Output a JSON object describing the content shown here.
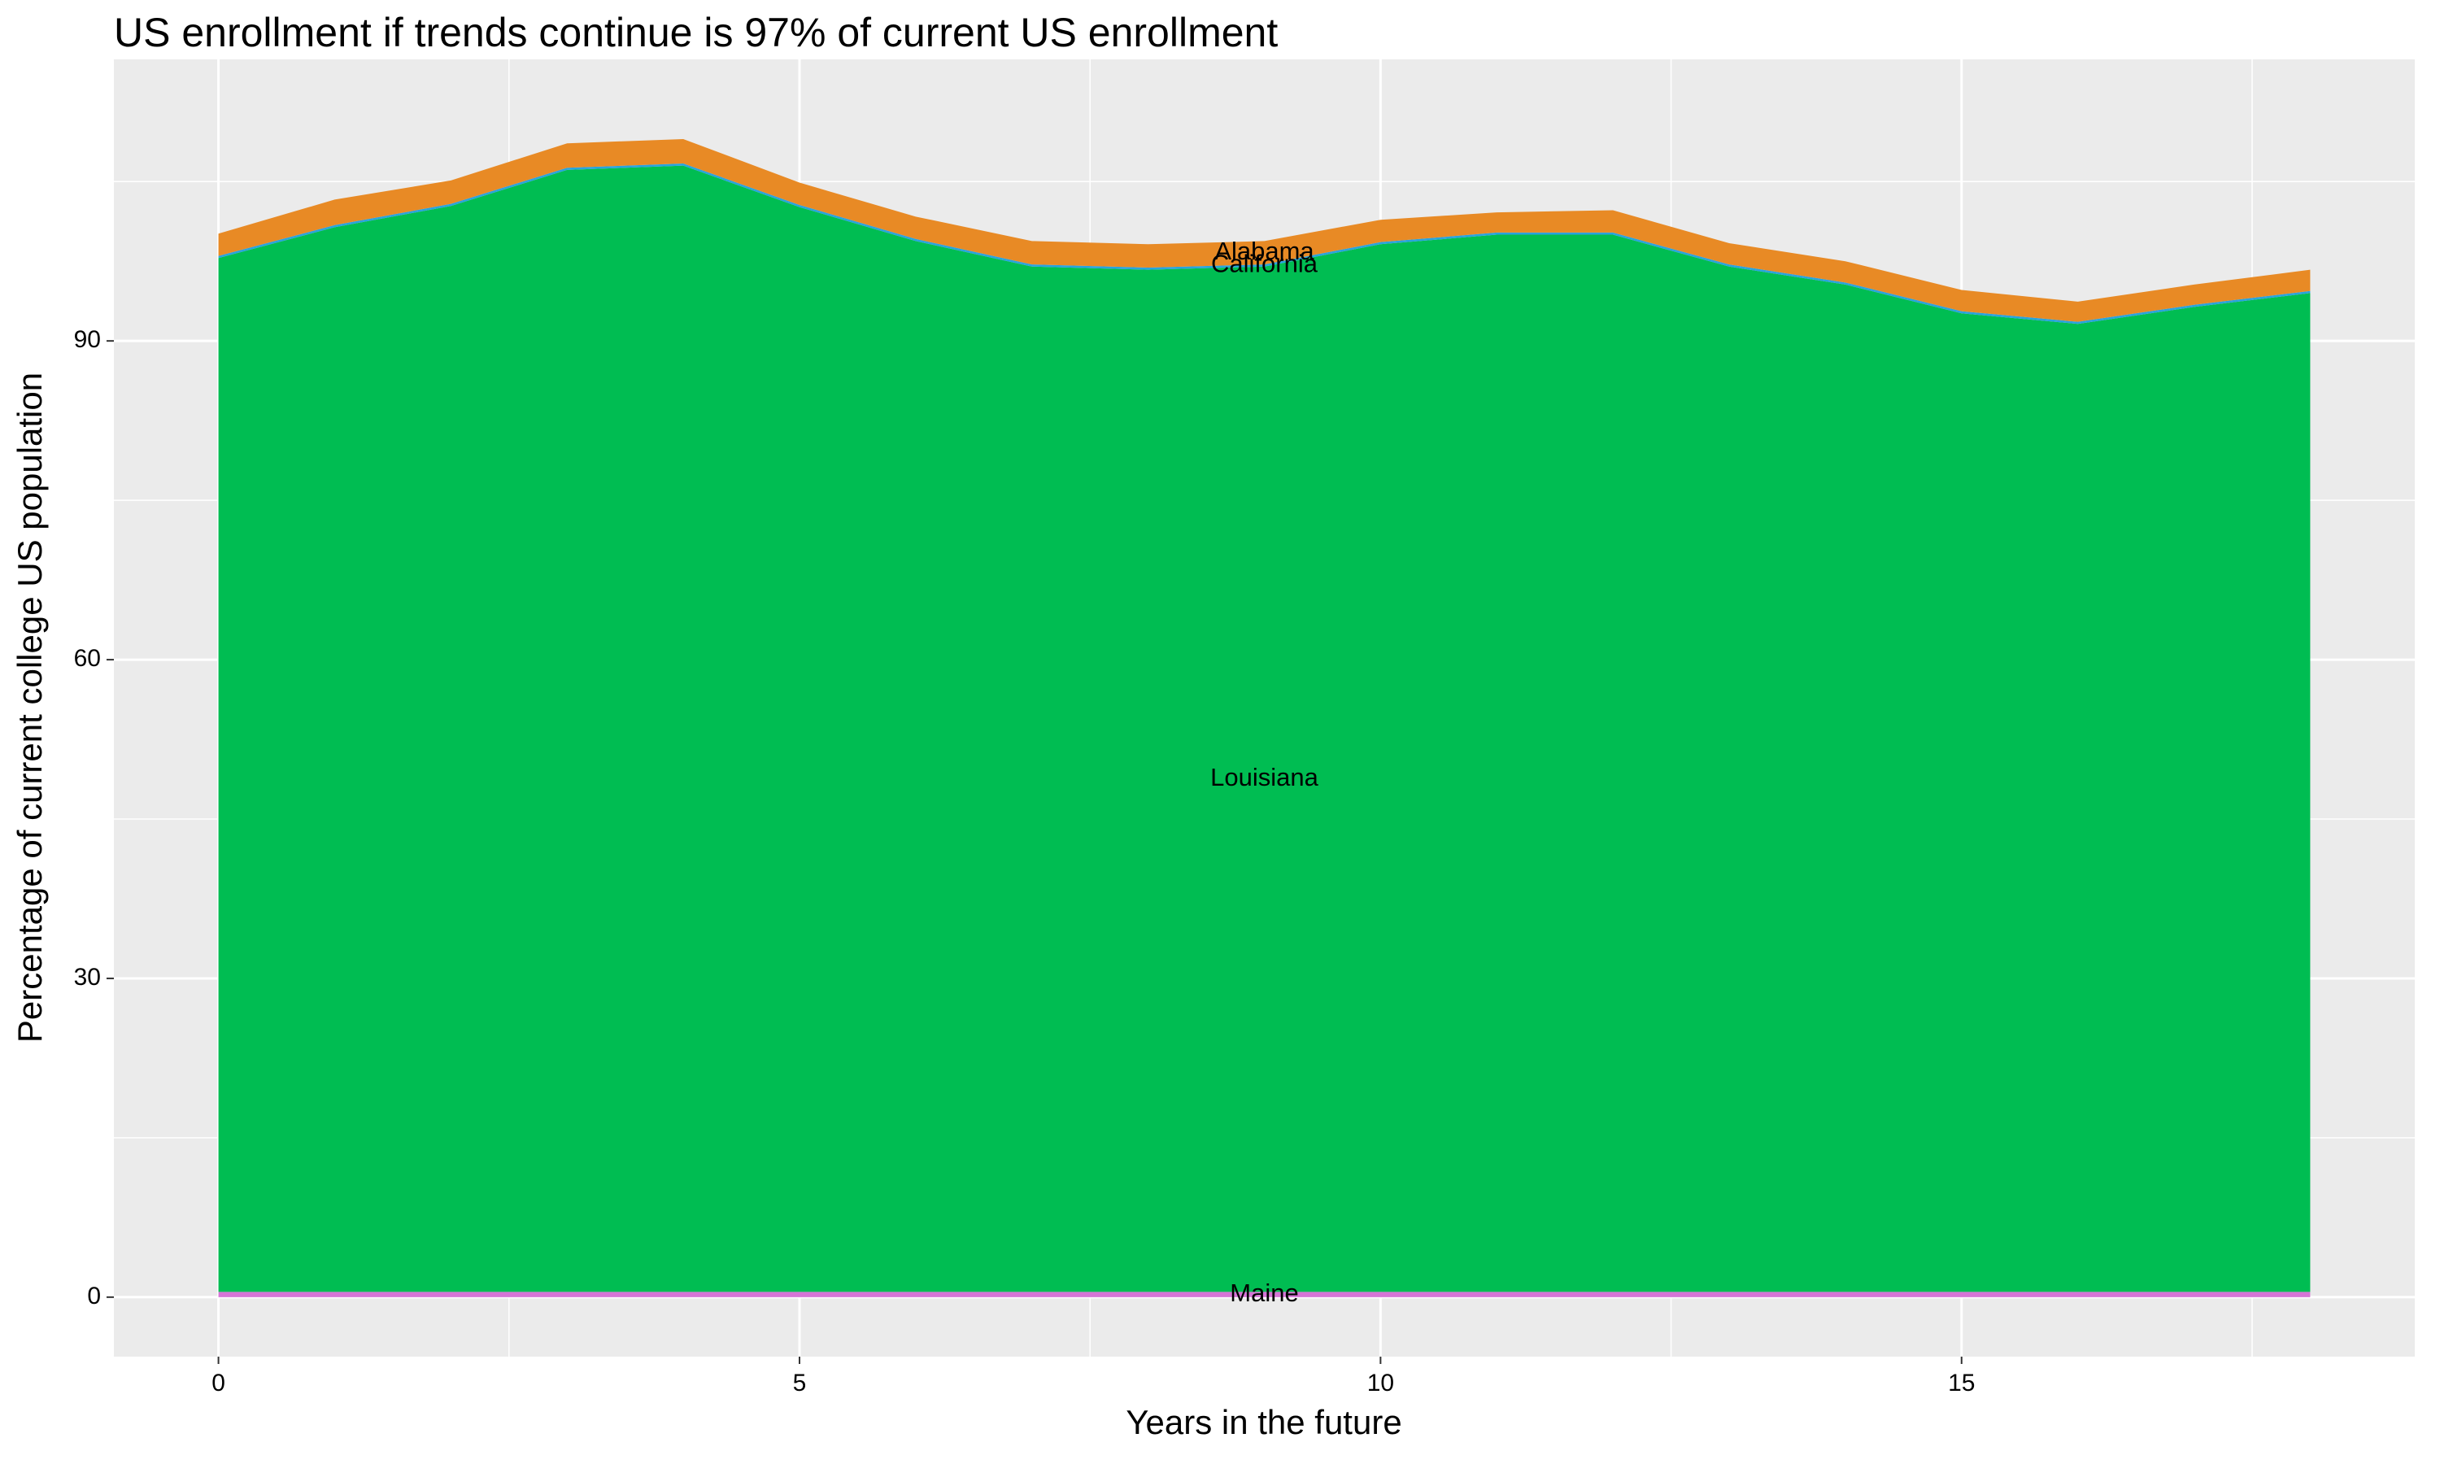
{
  "chart_data": {
    "type": "stacked_area",
    "title": "US enrollment if trends continue is 97% of current US enrollment",
    "x_label": "Years in the future",
    "y_label": "Percentage of current college US population",
    "x": [
      0,
      1,
      2,
      3,
      4,
      5,
      6,
      7,
      8,
      9,
      10,
      11,
      12,
      13,
      14,
      15,
      16,
      17,
      18
    ],
    "series": [
      {
        "name": "Maine",
        "color": "#d575d6",
        "values": [
          0.5,
          0.5,
          0.5,
          0.5,
          0.5,
          0.5,
          0.5,
          0.5,
          0.5,
          0.5,
          0.5,
          0.5,
          0.5,
          0.5,
          0.5,
          0.5,
          0.5,
          0.5,
          0.5
        ]
      },
      {
        "name": "Louisiana",
        "color": "#00bd52",
        "values": [
          97.3,
          100.2,
          102.2,
          105.6,
          106.0,
          102.1,
          98.9,
          96.5,
          96.2,
          96.5,
          98.6,
          99.5,
          99.5,
          96.5,
          94.8,
          92.1,
          91.1,
          92.7,
          94.0
        ]
      },
      {
        "name": "California",
        "color": "#29a3dd",
        "values": [
          0.2,
          0.2,
          0.2,
          0.2,
          0.2,
          0.2,
          0.2,
          0.2,
          0.2,
          0.2,
          0.2,
          0.2,
          0.2,
          0.2,
          0.2,
          0.2,
          0.2,
          0.2,
          0.2
        ]
      },
      {
        "name": "Alabama",
        "color": "#e88a25",
        "values": [
          2.1,
          2.4,
          2.2,
          2.3,
          2.3,
          2.1,
          2.1,
          2.2,
          2.2,
          2.2,
          2.1,
          1.9,
          2.1,
          2.0,
          2.0,
          2.0,
          1.9,
          1.9,
          2.0
        ]
      }
    ],
    "xlim": [
      -0.9,
      18.9
    ],
    "ylim": [
      -5.6,
      116.5
    ],
    "xticks": [
      0,
      5,
      10,
      15
    ],
    "yticks": [
      0,
      30,
      60,
      90
    ],
    "grid": true,
    "label_at_x_index": 9
  }
}
